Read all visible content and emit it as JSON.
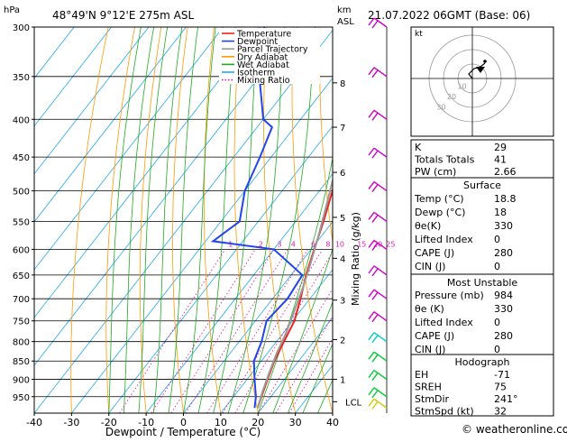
{
  "header": {
    "hpa_label": "hPa",
    "location": "48°49'N  9°12'E  275m  ASL",
    "km_label": "km",
    "asl_label": "ASL",
    "datetime": "21.07.2022  06GMT  (Base: 06)"
  },
  "chart_data": {
    "type": "line",
    "title": "",
    "xlabel": "Dewpoint / Temperature (°C)",
    "ylabel": "hPa",
    "x_ticks": [
      -40,
      -30,
      -20,
      -10,
      0,
      10,
      20,
      30,
      40
    ],
    "xlim": [
      -40,
      40
    ],
    "pressure_levels": [
      300,
      350,
      400,
      450,
      500,
      550,
      600,
      650,
      700,
      750,
      800,
      850,
      900,
      950
    ],
    "ylim": [
      300,
      1000
    ],
    "y_scale": "log",
    "km_ticks": [
      {
        "label": "8",
        "p": 357
      },
      {
        "label": "7",
        "p": 410
      },
      {
        "label": "6",
        "p": 472
      },
      {
        "label": "5",
        "p": 543
      },
      {
        "label": "4",
        "p": 617
      },
      {
        "label": "3",
        "p": 703
      },
      {
        "label": "2",
        "p": 795
      },
      {
        "label": "1",
        "p": 900
      },
      {
        "label": "LCL",
        "p": 965
      }
    ],
    "secondary_axis_label": "Mixing Ratio (g/kg)",
    "mixing_ratio_labels": [
      "1",
      "2",
      "3",
      "4",
      "6",
      "8",
      "10",
      "15",
      "20",
      "25"
    ],
    "legend_position": "top-right",
    "legend": [
      {
        "name": "Temperature",
        "color": "#ee2222",
        "dash": "solid"
      },
      {
        "name": "Dewpoint",
        "color": "#2244ee",
        "dash": "solid"
      },
      {
        "name": "Parcel Trajectory",
        "color": "#999999",
        "dash": "solid"
      },
      {
        "name": "Dry Adiabat",
        "color": "#ff9900",
        "dash": "solid"
      },
      {
        "name": "Wet Adiabat",
        "color": "#22aa22",
        "dash": "solid"
      },
      {
        "name": "Isotherm",
        "color": "#22aaee",
        "dash": "solid"
      },
      {
        "name": "Mixing Ratio",
        "color": "#dd22aa",
        "dash": "dotted"
      }
    ],
    "series": [
      {
        "name": "Temperature",
        "color": "#ee2222",
        "points": [
          [
            18.8,
            984
          ],
          [
            17.5,
            950
          ],
          [
            15.5,
            900
          ],
          [
            13.5,
            850
          ],
          [
            12,
            800
          ],
          [
            10.5,
            750
          ],
          [
            7.5,
            700
          ],
          [
            4,
            650
          ],
          [
            0.8,
            600
          ],
          [
            -2.5,
            550
          ],
          [
            -6.5,
            500
          ],
          [
            -11.5,
            450
          ],
          [
            -17,
            400
          ],
          [
            -23,
            350
          ],
          [
            -31,
            300
          ]
        ]
      },
      {
        "name": "Dewpoint",
        "color": "#2244ee",
        "points": [
          [
            18,
            984
          ],
          [
            16,
            950
          ],
          [
            12,
            900
          ],
          [
            8,
            850
          ],
          [
            6,
            800
          ],
          [
            3,
            750
          ],
          [
            4,
            700
          ],
          [
            3,
            650
          ],
          [
            -10,
            600
          ],
          [
            -28,
            585
          ],
          [
            -25,
            550
          ],
          [
            -30,
            500
          ],
          [
            -33,
            450
          ],
          [
            -36,
            410
          ],
          [
            -40,
            400
          ],
          [
            -50,
            350
          ],
          [
            -59,
            300
          ]
        ]
      },
      {
        "name": "Parcel Trajectory",
        "color": "#999999",
        "points": [
          [
            18.8,
            984
          ],
          [
            18,
            965
          ],
          [
            16.5,
            930
          ],
          [
            14.5,
            880
          ],
          [
            12.5,
            830
          ],
          [
            10.8,
            780
          ],
          [
            8.5,
            730
          ],
          [
            6,
            680
          ],
          [
            3,
            630
          ],
          [
            -0.5,
            580
          ],
          [
            -4.5,
            530
          ],
          [
            -9,
            480
          ],
          [
            -15,
            425
          ],
          [
            -21,
            375
          ],
          [
            -30,
            318
          ],
          [
            -33,
            300
          ]
        ]
      }
    ]
  },
  "wind_barbs": {
    "pressures": [
      300,
      350,
      400,
      450,
      500,
      550,
      600,
      650,
      700,
      750,
      800,
      850,
      900,
      950,
      984
    ],
    "colors": [
      "#cc00cc",
      "#cc00cc",
      "#cc00cc",
      "#cc00cc",
      "#cc00cc",
      "#cc00cc",
      "#cc00cc",
      "#cc00cc",
      "#cc00cc",
      "#cc00cc",
      "#00cccc",
      "#00cc33",
      "#00cc33",
      "#00cc33",
      "#cccc00"
    ]
  },
  "hodograph": {
    "label": "kt",
    "ring_labels": [
      "10",
      "20",
      "30"
    ]
  },
  "indices": {
    "rows": [
      {
        "label": "K",
        "value": "29"
      },
      {
        "label": "Totals Totals",
        "value": "41"
      },
      {
        "label": "PW (cm)",
        "value": "2.66"
      }
    ]
  },
  "surface": {
    "title": "Surface",
    "rows": [
      {
        "label": "Temp (°C)",
        "value": "18.8"
      },
      {
        "label": "Dewp (°C)",
        "value": "18"
      },
      {
        "label": "θe(K)",
        "value": "330"
      },
      {
        "label": "Lifted Index",
        "value": "0"
      },
      {
        "label": "CAPE (J)",
        "value": "280"
      },
      {
        "label": "CIN (J)",
        "value": "0"
      }
    ]
  },
  "most_unstable": {
    "title": "Most Unstable",
    "rows": [
      {
        "label": "Pressure (mb)",
        "value": "984"
      },
      {
        "label": "θe (K)",
        "value": "330"
      },
      {
        "label": "Lifted Index",
        "value": "0"
      },
      {
        "label": "CAPE (J)",
        "value": "280"
      },
      {
        "label": "CIN (J)",
        "value": "0"
      }
    ]
  },
  "hodo_table": {
    "title": "Hodograph",
    "rows": [
      {
        "label": "EH",
        "value": "-71"
      },
      {
        "label": "SREH",
        "value": "75"
      },
      {
        "label": "StmDir",
        "value": "241°"
      },
      {
        "label": "StmSpd (kt)",
        "value": "32"
      }
    ]
  },
  "footer": {
    "copyright": "© weatheronline.co.uk"
  },
  "colors": {
    "temperature": "#ee2222",
    "dewpoint": "#2244ee",
    "parcel": "#999999",
    "dry_adiabat": "#ff9900",
    "wet_adiabat": "#22aa22",
    "isotherm": "#22aaee",
    "mixing_ratio": "#dd22aa"
  }
}
